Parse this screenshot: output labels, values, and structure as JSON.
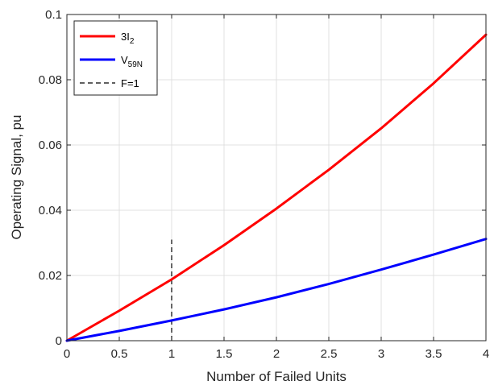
{
  "chart_data": {
    "type": "line",
    "xlabel": "Number of Failed Units",
    "ylabel": "Operating Signal, pu",
    "xlim": [
      0,
      4
    ],
    "ylim": [
      0,
      0.1
    ],
    "xticks": [
      0,
      0.5,
      1,
      1.5,
      2,
      2.5,
      3,
      3.5,
      4
    ],
    "xtick_labels": [
      "0",
      "0.5",
      "1",
      "1.5",
      "2",
      "2.5",
      "3",
      "3.5",
      "4"
    ],
    "yticks": [
      0,
      0.02,
      0.04,
      0.06,
      0.08,
      0.1
    ],
    "ytick_labels": [
      "0",
      "0.02",
      "0.04",
      "0.06",
      "0.08",
      "0.1"
    ],
    "grid": true,
    "legend_position": "top-left",
    "series": [
      {
        "name": "3I",
        "name_sub": "2",
        "color": "#ff0000",
        "style": "solid",
        "x": [
          0,
          0.5,
          1,
          1.5,
          2,
          2.5,
          3,
          3.5,
          4
        ],
        "y": [
          0,
          0.0092,
          0.0188,
          0.0293,
          0.0405,
          0.0524,
          0.0651,
          0.0789,
          0.0938
        ]
      },
      {
        "name": "V",
        "name_sub": "59N",
        "color": "#0000ff",
        "style": "solid",
        "x": [
          0,
          0.5,
          1,
          1.5,
          2,
          2.5,
          3,
          3.5,
          4
        ],
        "y": [
          0,
          0.003,
          0.0062,
          0.0096,
          0.0133,
          0.0174,
          0.0218,
          0.0264,
          0.0312
        ]
      }
    ],
    "vertical_marker": {
      "name": "F=1",
      "color": "#000000",
      "style": "dashed",
      "x": 1,
      "y": [
        0,
        0.031
      ]
    }
  }
}
